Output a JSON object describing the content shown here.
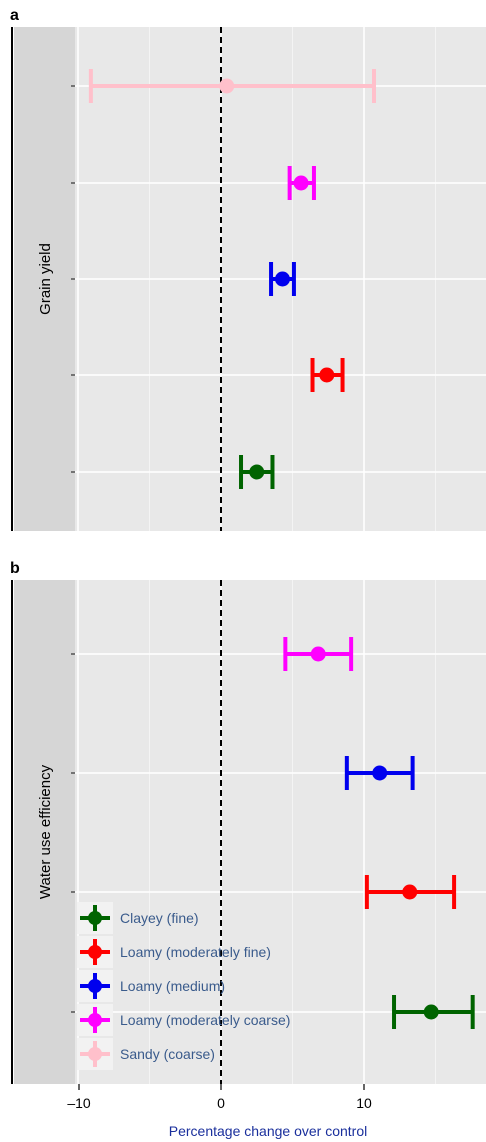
{
  "chart_data": [
    {
      "type": "scatter",
      "panel": "a",
      "facet_label": "Grain yield",
      "xlim": [
        -11,
        18.5
      ],
      "xticks": [
        -10,
        0,
        10
      ],
      "series": [
        {
          "name": "Sandy (coarse)",
          "color": "#ffc0cb",
          "x": 0.4,
          "lo": -9.1,
          "hi": 10.7
        },
        {
          "name": "Loamy (moderately coarse)",
          "color": "#ff00ff",
          "x": 5.6,
          "lo": 4.8,
          "hi": 6.5
        },
        {
          "name": "Loamy (medium)",
          "color": "#0000ee",
          "x": 4.3,
          "lo": 3.5,
          "hi": 5.1
        },
        {
          "name": "Loamy (moderately fine)",
          "color": "#ff0000",
          "x": 7.4,
          "lo": 6.4,
          "hi": 8.5
        },
        {
          "name": "Clayey (fine)",
          "color": "#006400",
          "x": 2.5,
          "lo": 1.4,
          "hi": 3.6
        }
      ]
    },
    {
      "type": "scatter",
      "panel": "b",
      "facet_label": "Water use efficiency",
      "xlim": [
        -11,
        18.5
      ],
      "xticks": [
        -10,
        0,
        10
      ],
      "xlabel": "Percentage change over control",
      "series": [
        {
          "name": "Loamy (moderately coarse)",
          "color": "#ff00ff",
          "x": 6.8,
          "lo": 4.5,
          "hi": 9.1
        },
        {
          "name": "Loamy (medium)",
          "color": "#0000ee",
          "x": 11.1,
          "lo": 8.8,
          "hi": 13.4
        },
        {
          "name": "Loamy (moderately fine)",
          "color": "#ff0000",
          "x": 13.2,
          "lo": 10.2,
          "hi": 16.3
        },
        {
          "name": "Clayey (fine)",
          "color": "#006400",
          "x": 14.7,
          "lo": 12.1,
          "hi": 17.6
        }
      ]
    }
  ],
  "legend": {
    "placement": "bottom-left",
    "items": [
      {
        "label": "Clayey (fine)",
        "color": "#006400"
      },
      {
        "label": "Loamy (moderately fine)",
        "color": "#ff0000"
      },
      {
        "label": "Loamy (medium)",
        "color": "#0000ee"
      },
      {
        "label": "Loamy (moderately coarse)",
        "color": "#ff00ff"
      },
      {
        "label": "Sandy (coarse)",
        "color": "#ffc0cb"
      }
    ]
  },
  "labels": {
    "panel_a": "a",
    "panel_b": "b",
    "tick_m10": "–10",
    "tick_0": "0",
    "tick_10": "10"
  },
  "colors": {
    "panel_background": "#e8e8e8",
    "strip_background": "#d6d6d6",
    "gridline": "#ffffff",
    "zero_line": "#000000"
  }
}
